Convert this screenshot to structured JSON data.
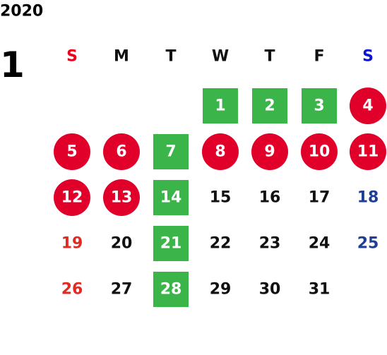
{
  "year": "2020",
  "month": "1",
  "weekdays": [
    {
      "label": "S",
      "color": "#e8001c"
    },
    {
      "label": "M",
      "color": "#111111"
    },
    {
      "label": "T",
      "color": "#111111"
    },
    {
      "label": "W",
      "color": "#111111"
    },
    {
      "label": "T",
      "color": "#111111"
    },
    {
      "label": "F",
      "color": "#111111"
    },
    {
      "label": "S",
      "color": "#0a14d8"
    }
  ],
  "weeks": [
    [
      null,
      null,
      null,
      {
        "day": "1",
        "shape": "square",
        "fill": "#3bb54a",
        "color": "#ffffff"
      },
      {
        "day": "2",
        "shape": "square",
        "fill": "#3bb54a",
        "color": "#ffffff"
      },
      {
        "day": "3",
        "shape": "square",
        "fill": "#3bb54a",
        "color": "#ffffff"
      },
      {
        "day": "4",
        "shape": "circle",
        "fill": "#e0002a",
        "color": "#ffffff"
      }
    ],
    [
      {
        "day": "5",
        "shape": "circle",
        "fill": "#e0002a",
        "color": "#ffffff"
      },
      {
        "day": "6",
        "shape": "circle",
        "fill": "#e0002a",
        "color": "#ffffff"
      },
      {
        "day": "7",
        "shape": "square",
        "fill": "#3bb54a",
        "color": "#ffffff"
      },
      {
        "day": "8",
        "shape": "circle",
        "fill": "#e0002a",
        "color": "#ffffff"
      },
      {
        "day": "9",
        "shape": "circle",
        "fill": "#e0002a",
        "color": "#ffffff"
      },
      {
        "day": "10",
        "shape": "circle",
        "fill": "#e0002a",
        "color": "#ffffff"
      },
      {
        "day": "11",
        "shape": "circle",
        "fill": "#e0002a",
        "color": "#ffffff"
      }
    ],
    [
      {
        "day": "12",
        "shape": "circle",
        "fill": "#e0002a",
        "color": "#ffffff"
      },
      {
        "day": "13",
        "shape": "circle",
        "fill": "#e0002a",
        "color": "#ffffff"
      },
      {
        "day": "14",
        "shape": "square",
        "fill": "#3bb54a",
        "color": "#ffffff"
      },
      {
        "day": "15",
        "color": "#111111"
      },
      {
        "day": "16",
        "color": "#111111"
      },
      {
        "day": "17",
        "color": "#111111"
      },
      {
        "day": "18",
        "color": "#1f3f95"
      }
    ],
    [
      {
        "day": "19",
        "color": "#e02a22"
      },
      {
        "day": "20",
        "color": "#111111"
      },
      {
        "day": "21",
        "shape": "square",
        "fill": "#3bb54a",
        "color": "#ffffff"
      },
      {
        "day": "22",
        "color": "#111111"
      },
      {
        "day": "23",
        "color": "#111111"
      },
      {
        "day": "24",
        "color": "#111111"
      },
      {
        "day": "25",
        "color": "#1f3f95"
      }
    ],
    [
      {
        "day": "26",
        "color": "#e02a22"
      },
      {
        "day": "27",
        "color": "#111111"
      },
      {
        "day": "28",
        "shape": "square",
        "fill": "#3bb54a",
        "color": "#ffffff"
      },
      {
        "day": "29",
        "color": "#111111"
      },
      {
        "day": "30",
        "color": "#111111"
      },
      {
        "day": "31",
        "color": "#111111"
      },
      null
    ]
  ]
}
